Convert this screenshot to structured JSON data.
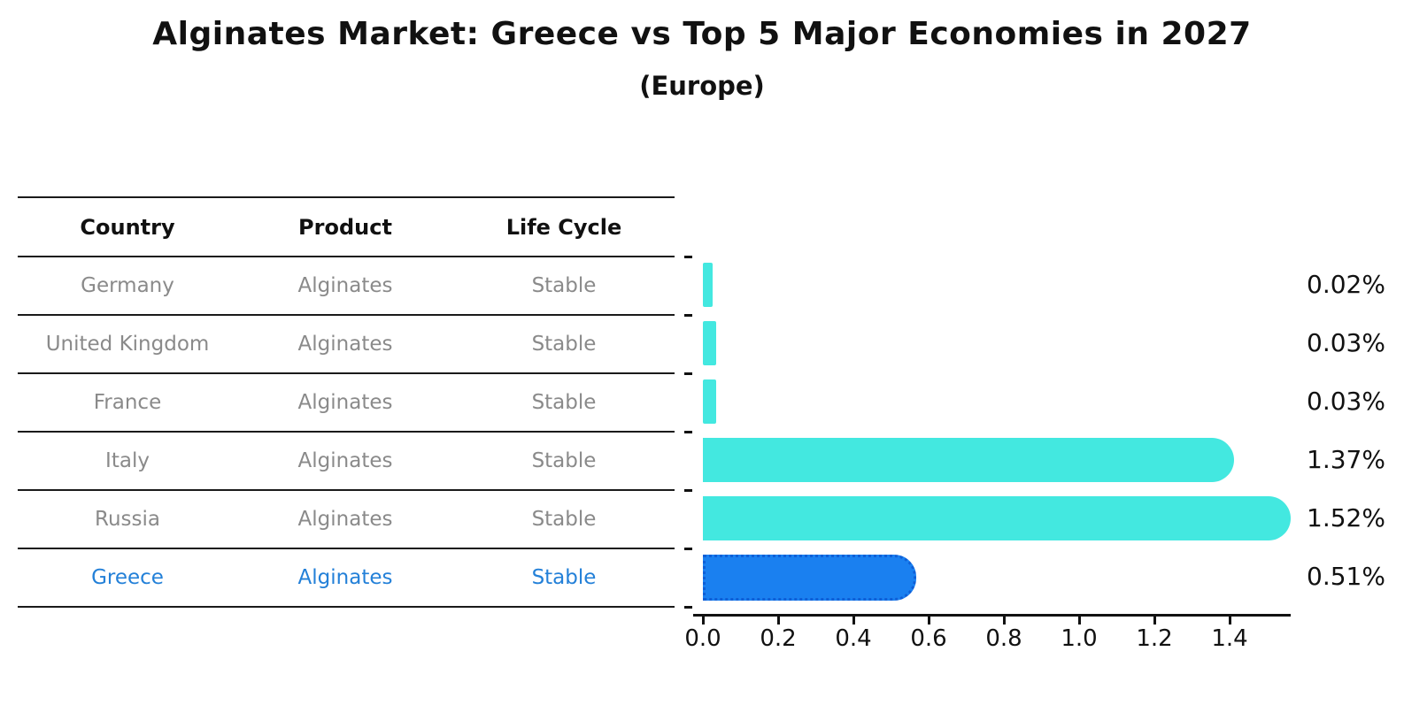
{
  "title": "Alginates Market: Greece vs Top 5 Major Economies in 2027",
  "subtitle": "(Europe)",
  "table": {
    "headers": [
      "Country",
      "Product",
      "Life Cycle"
    ],
    "rows": [
      {
        "country": "Germany",
        "product": "Alginates",
        "life_cycle": "Stable"
      },
      {
        "country": "United Kingdom",
        "product": "Alginates",
        "life_cycle": "Stable"
      },
      {
        "country": "France",
        "product": "Alginates",
        "life_cycle": "Stable"
      },
      {
        "country": "Italy",
        "product": "Alginates",
        "life_cycle": "Stable"
      },
      {
        "country": "Russia",
        "product": "Alginates",
        "life_cycle": "Stable"
      },
      {
        "country": "Greece",
        "product": "Alginates",
        "life_cycle": "Stable"
      }
    ],
    "highlight_row": "Greece"
  },
  "chart_data": {
    "type": "bar",
    "orientation": "horizontal",
    "title": "Alginates Market: Greece vs Top 5 Major Economies in 2027",
    "subtitle": "(Europe)",
    "categories": [
      "Germany",
      "United Kingdom",
      "France",
      "Italy",
      "Russia",
      "Greece"
    ],
    "values": [
      0.02,
      0.03,
      0.03,
      1.37,
      1.52,
      0.51
    ],
    "value_labels": [
      "0.02%",
      "0.03%",
      "0.03%",
      "1.37%",
      "1.52%",
      "0.51%"
    ],
    "highlight_index": 5,
    "x_tick_labels": [
      "0.0",
      "0.2",
      "0.4",
      "0.6",
      "0.8",
      "1.0",
      "1.2",
      "1.4"
    ],
    "xlim": [
      0.0,
      1.58
    ],
    "grid": false,
    "legend": false
  },
  "colors": {
    "bar": "#43e8e0",
    "highlight_bar": "#1a80f0",
    "highlight_border": "#0f5fd7",
    "highlight_text": "#2380d8",
    "table_text": "#8a8a8a",
    "axis": "#111111"
  }
}
